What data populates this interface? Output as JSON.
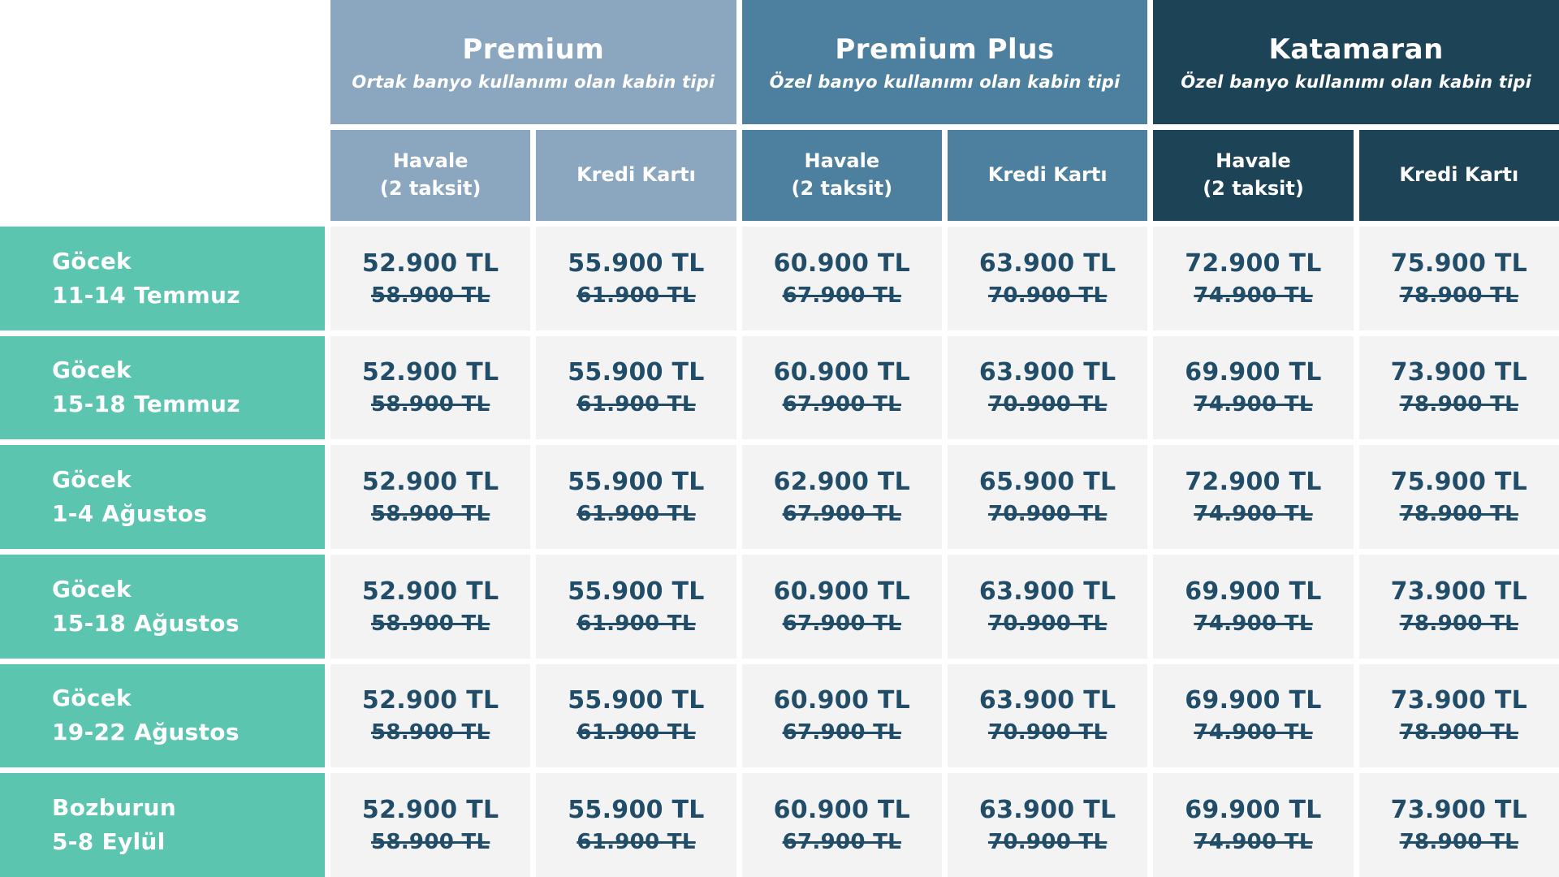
{
  "table": {
    "groups": [
      {
        "name": "Premium",
        "subtitle": "Ortak banyo kullanımı olan kabin tipi",
        "color": "#8BA6BF"
      },
      {
        "name": "Premium Plus",
        "subtitle": "Özel banyo kullanımı olan kabin tipi",
        "color": "#4D7F9F"
      },
      {
        "name": "Katamaran",
        "subtitle": "Özel banyo kullanımı olan kabin tipi",
        "color": "#1D4357"
      }
    ],
    "payment": {
      "havale": "Havale",
      "havale_note": "(2 taksit)",
      "kredi": "Kredi Kartı"
    },
    "rows": [
      {
        "destination": "Göcek",
        "dates": "11-14 Temmuz",
        "prices": [
          {
            "current": "52.900 TL",
            "old": "58.900 TL"
          },
          {
            "current": "55.900 TL",
            "old": "61.900 TL"
          },
          {
            "current": "60.900 TL",
            "old": "67.900 TL"
          },
          {
            "current": "63.900 TL",
            "old": "70.900 TL"
          },
          {
            "current": "72.900 TL",
            "old": "74.900 TL"
          },
          {
            "current": "75.900 TL",
            "old": "78.900 TL"
          }
        ]
      },
      {
        "destination": "Göcek",
        "dates": "15-18 Temmuz",
        "prices": [
          {
            "current": "52.900 TL",
            "old": "58.900 TL"
          },
          {
            "current": "55.900 TL",
            "old": "61.900 TL"
          },
          {
            "current": "60.900 TL",
            "old": "67.900 TL"
          },
          {
            "current": "63.900 TL",
            "old": "70.900 TL"
          },
          {
            "current": "69.900 TL",
            "old": "74.900 TL"
          },
          {
            "current": "73.900 TL",
            "old": "78.900 TL"
          }
        ]
      },
      {
        "destination": "Göcek",
        "dates": "1-4 Ağustos",
        "prices": [
          {
            "current": "52.900 TL",
            "old": "58.900 TL"
          },
          {
            "current": "55.900 TL",
            "old": "61.900 TL"
          },
          {
            "current": "62.900 TL",
            "old": "67.900 TL"
          },
          {
            "current": "65.900 TL",
            "old": "70.900 TL"
          },
          {
            "current": "72.900 TL",
            "old": "74.900 TL"
          },
          {
            "current": "75.900 TL",
            "old": "78.900 TL"
          }
        ]
      },
      {
        "destination": "Göcek",
        "dates": "15-18 Ağustos",
        "prices": [
          {
            "current": "52.900 TL",
            "old": "58.900 TL"
          },
          {
            "current": "55.900 TL",
            "old": "61.900 TL"
          },
          {
            "current": "60.900 TL",
            "old": "67.900 TL"
          },
          {
            "current": "63.900 TL",
            "old": "70.900 TL"
          },
          {
            "current": "69.900 TL",
            "old": "74.900 TL"
          },
          {
            "current": "73.900 TL",
            "old": "78.900 TL"
          }
        ]
      },
      {
        "destination": "Göcek",
        "dates": "19-22 Ağustos",
        "prices": [
          {
            "current": "52.900 TL",
            "old": "58.900 TL"
          },
          {
            "current": "55.900 TL",
            "old": "61.900 TL"
          },
          {
            "current": "60.900 TL",
            "old": "67.900 TL"
          },
          {
            "current": "63.900 TL",
            "old": "70.900 TL"
          },
          {
            "current": "69.900 TL",
            "old": "74.900 TL"
          },
          {
            "current": "73.900 TL",
            "old": "78.900 TL"
          }
        ]
      },
      {
        "destination": "Bozburun",
        "dates": "5-8 Eylül",
        "prices": [
          {
            "current": "52.900 TL",
            "old": "58.900 TL"
          },
          {
            "current": "55.900 TL",
            "old": "61.900 TL"
          },
          {
            "current": "60.900 TL",
            "old": "67.900 TL"
          },
          {
            "current": "63.900 TL",
            "old": "70.900 TL"
          },
          {
            "current": "69.900 TL",
            "old": "74.900 TL"
          },
          {
            "current": "73.900 TL",
            "old": "78.900 TL"
          }
        ]
      }
    ],
    "colors": {
      "premium": "#8BA6BF",
      "premium_plus": "#4D7F9F",
      "katamaran": "#1D4357",
      "row_label": "#5CC5B0",
      "cell_bg": "#F3F3F3",
      "price_text": "#214D69",
      "divider": "#FFFFFF"
    }
  }
}
